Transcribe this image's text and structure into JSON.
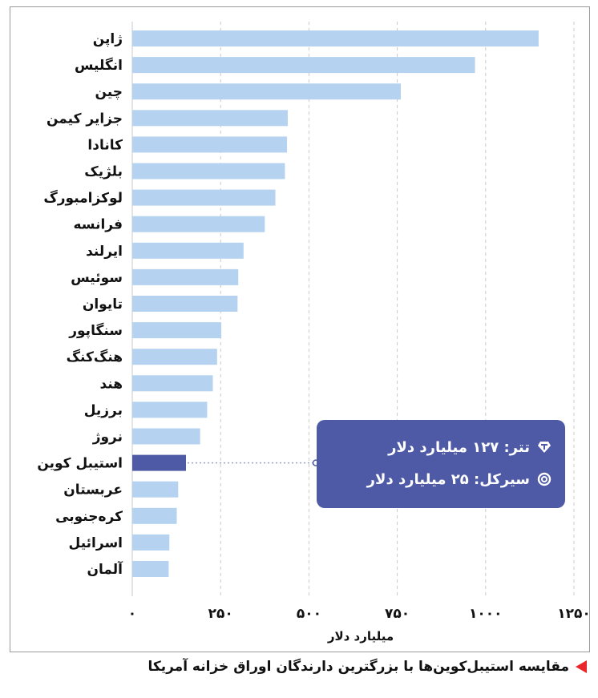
{
  "chart_data": {
    "type": "bar",
    "orientation": "horizontal",
    "categories": [
      "ژاپن",
      "انگلیس",
      "چین",
      "جزایر کیمن",
      "کانادا",
      "بلژیک",
      "لوکزامبورگ",
      "فرانسه",
      "ایرلند",
      "سوئیس",
      "تایوان",
      "سنگاپور",
      "هنگ‌کنگ",
      "هند",
      "برزیل",
      "نروژ",
      "استیبل کوین",
      "عربستان",
      "کره‌جنوبی",
      "اسرائیل",
      "آلمان"
    ],
    "values": [
      1150,
      970,
      760,
      440,
      438,
      432,
      405,
      375,
      315,
      300,
      298,
      252,
      240,
      228,
      212,
      192,
      152,
      130,
      126,
      105,
      103
    ],
    "highlight_category": "استیبل کوین",
    "xlabel": "میلیارد دلار",
    "xlim": [
      0,
      1250
    ],
    "xticks": [
      0,
      250,
      500,
      750,
      1000,
      1250
    ],
    "xtick_labels": [
      "۰",
      "۲۵۰",
      "۵۰۰",
      "۷۵۰",
      "۱۰۰۰",
      "۱۲۵۰"
    ],
    "grid": "vertical-dashed",
    "colors": {
      "bar": "#b5d3f0",
      "highlight": "#4f5aa6"
    }
  },
  "tooltip": {
    "rows": [
      {
        "text": "تتر: ۱۲۷ میلیارد دلار",
        "icon": "tether-icon"
      },
      {
        "text": "سیرکل: ۲۵ میلیارد دلار",
        "icon": "circle-icon"
      }
    ],
    "color": "#4f5aa6"
  },
  "caption": {
    "text": "مقایسه استیبل‌کوین‌ها با بزرگترین دارندگان اوراق خزانه آمریکا",
    "marker_color": "#e8262b"
  }
}
